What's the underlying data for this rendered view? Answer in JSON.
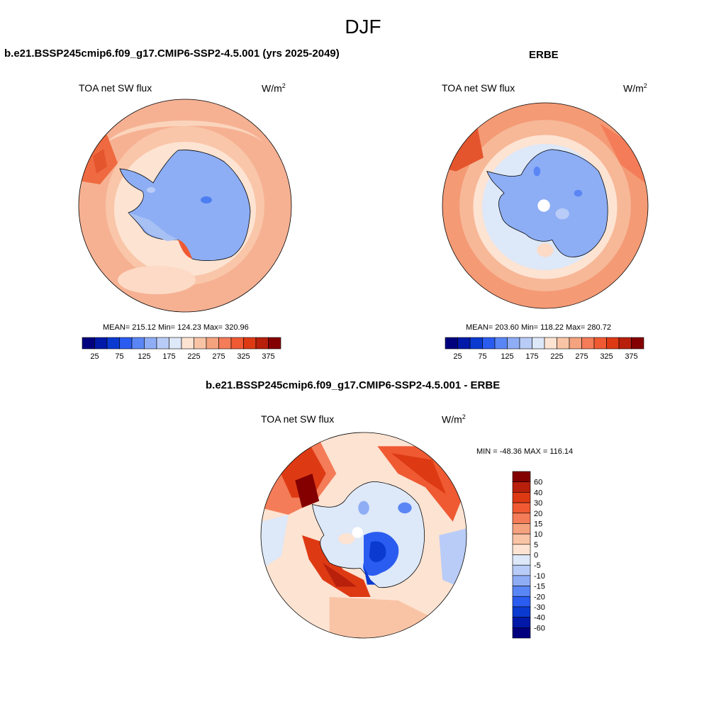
{
  "figure": {
    "title": "DJF"
  },
  "panels": {
    "model": {
      "title": "b.e21.BSSP245cmip6.f09_g17.CMIP6-SSP2-4.5.001 (yrs 2025-2049)",
      "variable": "TOA net SW flux",
      "units_base": "W/m",
      "units_exp": "2",
      "stats": "MEAN= 215.12  Min= 124.23  Max= 320.96"
    },
    "obs": {
      "title": "ERBE",
      "variable": "TOA net SW flux",
      "units_base": "W/m",
      "units_exp": "2",
      "stats": "MEAN= 203.60  Min= 118.22  Max= 280.72"
    },
    "diff": {
      "title": "b.e21.BSSP245cmip6.f09_g17.CMIP6-SSP2-4.5.001 - ERBE",
      "variable": "TOA net SW flux",
      "units_base": "W/m",
      "units_exp": "2",
      "stats": "MIN = -48.36 MAX = 116.14"
    }
  },
  "colorbars": {
    "absolute": {
      "colors": [
        "#00007f",
        "#0019a8",
        "#0a3ad0",
        "#2b5cf0",
        "#5a86f5",
        "#8fadf5",
        "#b9ccf7",
        "#dde8f8",
        "#fde3d2",
        "#f9c4a6",
        "#f5a27f",
        "#f47c58",
        "#ef5a33",
        "#dd3a14",
        "#b8200c",
        "#840000"
      ],
      "tick_labels": [
        "25",
        "75",
        "125",
        "175",
        "225",
        "275",
        "325",
        "375"
      ]
    },
    "difference": {
      "colors_top_to_bottom": [
        "#840000",
        "#b8200c",
        "#dd3a14",
        "#ef5a33",
        "#f47c58",
        "#f5a27f",
        "#f9c4a6",
        "#fde3d2",
        "#dde8f8",
        "#b9ccf7",
        "#8fadf5",
        "#5a86f5",
        "#2b5cf0",
        "#0a3ad0",
        "#0019a8",
        "#00007f"
      ],
      "tick_labels": [
        "60",
        "40",
        "30",
        "20",
        "15",
        "10",
        "5",
        "0",
        "-5",
        "-10",
        "-15",
        "-20",
        "-30",
        "-40",
        "-60"
      ]
    }
  }
}
